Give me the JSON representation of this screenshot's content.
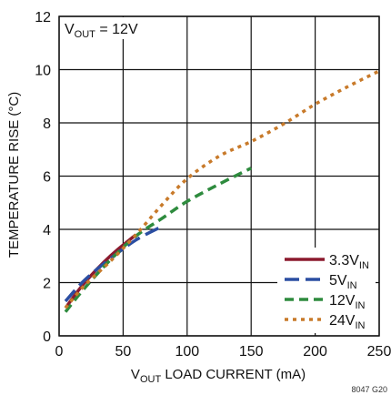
{
  "chart_data": {
    "type": "line",
    "xlabel": {
      "pre": "V",
      "sub": "OUT",
      "post": " LOAD CURRENT (mA)"
    },
    "ylabel": "TEMPERATURE RISE (°C)",
    "xlim": [
      0,
      250
    ],
    "ylim": [
      0,
      12
    ],
    "xticks": [
      "0",
      "50",
      "100",
      "150",
      "200",
      "250"
    ],
    "yticks": [
      "0",
      "2",
      "4",
      "6",
      "8",
      "10",
      "12"
    ],
    "grid": true,
    "annotation": {
      "pre": "V",
      "sub": "OUT",
      "post": " = 12V"
    },
    "figure_id": "8047 G20",
    "legend_position": "bottom-right",
    "series": [
      {
        "name": "3.3V",
        "name_sub": "IN",
        "color": "#8b1a2e",
        "dash": "solid",
        "x": [
          5,
          20,
          40,
          60
        ],
        "y": [
          1.05,
          2.0,
          3.0,
          3.8
        ]
      },
      {
        "name": "5V",
        "name_sub": "IN",
        "color": "#2b4ea2",
        "dash": "long-dash",
        "x": [
          5,
          20,
          40,
          60,
          80
        ],
        "y": [
          1.3,
          2.1,
          2.9,
          3.6,
          4.1
        ]
      },
      {
        "name": "12V",
        "name_sub": "IN",
        "color": "#2e8b3e",
        "dash": "dash",
        "x": [
          5,
          20,
          40,
          60,
          80,
          100,
          125,
          150
        ],
        "y": [
          0.9,
          1.8,
          2.85,
          3.75,
          4.4,
          5.05,
          5.7,
          6.3
        ]
      },
      {
        "name": "24V",
        "name_sub": "IN",
        "color": "#c87a2a",
        "dash": "dot",
        "x": [
          5,
          20,
          40,
          60,
          80,
          100,
          125,
          150,
          175,
          200,
          225,
          250
        ],
        "y": [
          1.05,
          1.9,
          2.8,
          3.8,
          4.9,
          5.9,
          6.75,
          7.3,
          7.95,
          8.7,
          9.35,
          9.95
        ]
      }
    ]
  }
}
